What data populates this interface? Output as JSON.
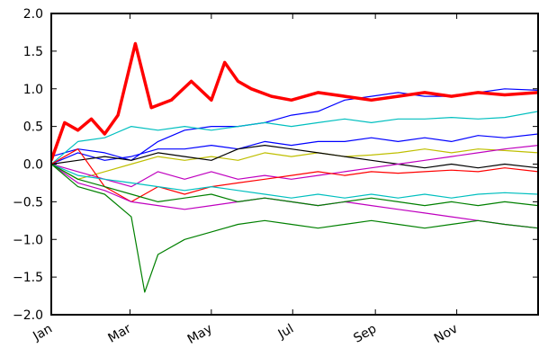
{
  "chart_data": {
    "type": "line",
    "title": "",
    "xlabel": "",
    "ylabel": "",
    "ylim": [
      -2.0,
      2.0
    ],
    "xlim_day": [
      0,
      365
    ],
    "grid": false,
    "legend": "none",
    "y_ticks": [
      {
        "value": 2.0,
        "label": "2.0"
      },
      {
        "value": 1.5,
        "label": "1.5"
      },
      {
        "value": 1.0,
        "label": "1.0"
      },
      {
        "value": 0.5,
        "label": "0.5"
      },
      {
        "value": 0.0,
        "label": "0.0"
      },
      {
        "value": -0.5,
        "label": "−0.5"
      },
      {
        "value": -1.0,
        "label": "−1.0"
      },
      {
        "value": -1.5,
        "label": "−1.5"
      },
      {
        "value": -2.0,
        "label": "−2.0"
      }
    ],
    "x_ticks": [
      {
        "day": 0,
        "label": "Jan"
      },
      {
        "day": 59,
        "label": "Mar"
      },
      {
        "day": 120,
        "label": "May"
      },
      {
        "day": 181,
        "label": "Jul"
      },
      {
        "day": 243,
        "label": "Sep"
      },
      {
        "day": 304,
        "label": "Nov"
      }
    ],
    "series": [
      {
        "color": "#ff0000",
        "bold": true,
        "points": [
          [
            0,
            0.05
          ],
          [
            10,
            0.55
          ],
          [
            20,
            0.45
          ],
          [
            30,
            0.6
          ],
          [
            40,
            0.4
          ],
          [
            50,
            0.65
          ],
          [
            63,
            1.6
          ],
          [
            75,
            0.75
          ],
          [
            90,
            0.85
          ],
          [
            105,
            1.1
          ],
          [
            120,
            0.85
          ],
          [
            130,
            1.35
          ],
          [
            140,
            1.1
          ],
          [
            150,
            1.0
          ],
          [
            165,
            0.9
          ],
          [
            180,
            0.85
          ],
          [
            200,
            0.95
          ],
          [
            220,
            0.9
          ],
          [
            240,
            0.85
          ],
          [
            260,
            0.9
          ],
          [
            280,
            0.95
          ],
          [
            300,
            0.9
          ],
          [
            320,
            0.95
          ],
          [
            340,
            0.92
          ],
          [
            365,
            0.95
          ]
        ]
      },
      {
        "color": "#0000ff",
        "bold": false,
        "points": [
          [
            0,
            0.1
          ],
          [
            20,
            0.2
          ],
          [
            40,
            0.15
          ],
          [
            60,
            0.05
          ],
          [
            80,
            0.3
          ],
          [
            100,
            0.45
          ],
          [
            120,
            0.5
          ],
          [
            140,
            0.5
          ],
          [
            160,
            0.55
          ],
          [
            180,
            0.65
          ],
          [
            200,
            0.7
          ],
          [
            220,
            0.85
          ],
          [
            240,
            0.9
          ],
          [
            260,
            0.95
          ],
          [
            280,
            0.9
          ],
          [
            300,
            0.9
          ],
          [
            320,
            0.95
          ],
          [
            340,
            1.0
          ],
          [
            365,
            0.98
          ]
        ]
      },
      {
        "color": "#00bfbf",
        "bold": false,
        "points": [
          [
            0,
            0.0
          ],
          [
            20,
            0.3
          ],
          [
            40,
            0.35
          ],
          [
            60,
            0.5
          ],
          [
            80,
            0.45
          ],
          [
            100,
            0.5
          ],
          [
            120,
            0.45
          ],
          [
            140,
            0.5
          ],
          [
            160,
            0.55
          ],
          [
            180,
            0.5
          ],
          [
            200,
            0.55
          ],
          [
            220,
            0.6
          ],
          [
            240,
            0.55
          ],
          [
            260,
            0.6
          ],
          [
            280,
            0.6
          ],
          [
            300,
            0.62
          ],
          [
            320,
            0.6
          ],
          [
            340,
            0.62
          ],
          [
            365,
            0.7
          ]
        ]
      },
      {
        "color": "#0000ff",
        "bold": false,
        "points": [
          [
            0,
            0.0
          ],
          [
            20,
            0.15
          ],
          [
            40,
            0.05
          ],
          [
            60,
            0.1
          ],
          [
            80,
            0.2
          ],
          [
            100,
            0.2
          ],
          [
            120,
            0.25
          ],
          [
            140,
            0.2
          ],
          [
            160,
            0.3
          ],
          [
            180,
            0.25
          ],
          [
            200,
            0.3
          ],
          [
            220,
            0.3
          ],
          [
            240,
            0.35
          ],
          [
            260,
            0.3
          ],
          [
            280,
            0.35
          ],
          [
            300,
            0.3
          ],
          [
            320,
            0.38
          ],
          [
            340,
            0.35
          ],
          [
            365,
            0.4
          ]
        ]
      },
      {
        "color": "#bfbf00",
        "bold": false,
        "points": [
          [
            0,
            0.0
          ],
          [
            20,
            -0.2
          ],
          [
            40,
            -0.1
          ],
          [
            60,
            0.0
          ],
          [
            80,
            0.1
          ],
          [
            100,
            0.05
          ],
          [
            120,
            0.1
          ],
          [
            140,
            0.05
          ],
          [
            160,
            0.15
          ],
          [
            180,
            0.1
          ],
          [
            200,
            0.15
          ],
          [
            220,
            0.1
          ],
          [
            240,
            0.12
          ],
          [
            260,
            0.15
          ],
          [
            280,
            0.2
          ],
          [
            300,
            0.15
          ],
          [
            320,
            0.2
          ],
          [
            340,
            0.18
          ],
          [
            365,
            0.15
          ]
        ]
      },
      {
        "color": "#000000",
        "bold": false,
        "points": [
          [
            0,
            0.0
          ],
          [
            20,
            0.05
          ],
          [
            40,
            0.1
          ],
          [
            60,
            0.05
          ],
          [
            80,
            0.15
          ],
          [
            100,
            0.1
          ],
          [
            120,
            0.05
          ],
          [
            140,
            0.2
          ],
          [
            160,
            0.25
          ],
          [
            180,
            0.2
          ],
          [
            200,
            0.15
          ],
          [
            220,
            0.1
          ],
          [
            240,
            0.05
          ],
          [
            260,
            0.0
          ],
          [
            280,
            -0.05
          ],
          [
            300,
            0.0
          ],
          [
            320,
            -0.05
          ],
          [
            340,
            0.0
          ],
          [
            365,
            -0.05
          ]
        ]
      },
      {
        "color": "#bf00bf",
        "bold": false,
        "points": [
          [
            0,
            0.0
          ],
          [
            20,
            -0.1
          ],
          [
            40,
            -0.2
          ],
          [
            60,
            -0.3
          ],
          [
            80,
            -0.1
          ],
          [
            100,
            -0.2
          ],
          [
            120,
            -0.1
          ],
          [
            140,
            -0.2
          ],
          [
            160,
            -0.15
          ],
          [
            180,
            -0.2
          ],
          [
            200,
            -0.15
          ],
          [
            220,
            -0.1
          ],
          [
            240,
            -0.05
          ],
          [
            260,
            0.0
          ],
          [
            280,
            0.05
          ],
          [
            300,
            0.1
          ],
          [
            320,
            0.15
          ],
          [
            340,
            0.2
          ],
          [
            365,
            0.25
          ]
        ]
      },
      {
        "color": "#ff0000",
        "bold": false,
        "points": [
          [
            0,
            0.0
          ],
          [
            20,
            0.2
          ],
          [
            40,
            -0.3
          ],
          [
            60,
            -0.5
          ],
          [
            80,
            -0.3
          ],
          [
            100,
            -0.4
          ],
          [
            120,
            -0.3
          ],
          [
            140,
            -0.25
          ],
          [
            160,
            -0.2
          ],
          [
            180,
            -0.15
          ],
          [
            200,
            -0.1
          ],
          [
            220,
            -0.15
          ],
          [
            240,
            -0.1
          ],
          [
            260,
            -0.12
          ],
          [
            280,
            -0.1
          ],
          [
            300,
            -0.08
          ],
          [
            320,
            -0.1
          ],
          [
            340,
            -0.05
          ],
          [
            365,
            -0.1
          ]
        ]
      },
      {
        "color": "#bf00bf",
        "bold": false,
        "points": [
          [
            0,
            0.0
          ],
          [
            20,
            -0.25
          ],
          [
            40,
            -0.35
          ],
          [
            60,
            -0.5
          ],
          [
            80,
            -0.55
          ],
          [
            100,
            -0.6
          ],
          [
            120,
            -0.55
          ],
          [
            140,
            -0.5
          ],
          [
            160,
            -0.45
          ],
          [
            180,
            -0.5
          ],
          [
            200,
            -0.55
          ],
          [
            220,
            -0.5
          ],
          [
            240,
            -0.55
          ],
          [
            260,
            -0.6
          ],
          [
            280,
            -0.65
          ],
          [
            300,
            -0.7
          ],
          [
            320,
            -0.75
          ],
          [
            340,
            -0.8
          ],
          [
            365,
            -0.85
          ]
        ]
      },
      {
        "color": "#00bfbf",
        "bold": false,
        "points": [
          [
            0,
            0.0
          ],
          [
            20,
            -0.15
          ],
          [
            40,
            -0.2
          ],
          [
            60,
            -0.25
          ],
          [
            80,
            -0.3
          ],
          [
            100,
            -0.35
          ],
          [
            120,
            -0.3
          ],
          [
            140,
            -0.35
          ],
          [
            160,
            -0.4
          ],
          [
            180,
            -0.45
          ],
          [
            200,
            -0.4
          ],
          [
            220,
            -0.45
          ],
          [
            240,
            -0.4
          ],
          [
            260,
            -0.45
          ],
          [
            280,
            -0.4
          ],
          [
            300,
            -0.45
          ],
          [
            320,
            -0.4
          ],
          [
            340,
            -0.38
          ],
          [
            365,
            -0.4
          ]
        ]
      },
      {
        "color": "#008000",
        "bold": false,
        "points": [
          [
            0,
            0.0
          ],
          [
            20,
            -0.3
          ],
          [
            40,
            -0.4
          ],
          [
            60,
            -0.7
          ],
          [
            70,
            -1.7
          ],
          [
            80,
            -1.2
          ],
          [
            100,
            -1.0
          ],
          [
            120,
            -0.9
          ],
          [
            140,
            -0.8
          ],
          [
            160,
            -0.75
          ],
          [
            180,
            -0.8
          ],
          [
            200,
            -0.85
          ],
          [
            220,
            -0.8
          ],
          [
            240,
            -0.75
          ],
          [
            260,
            -0.8
          ],
          [
            280,
            -0.85
          ],
          [
            300,
            -0.8
          ],
          [
            320,
            -0.75
          ],
          [
            340,
            -0.8
          ],
          [
            365,
            -0.85
          ]
        ]
      },
      {
        "color": "#008000",
        "bold": false,
        "points": [
          [
            0,
            0.0
          ],
          [
            20,
            -0.2
          ],
          [
            40,
            -0.3
          ],
          [
            60,
            -0.4
          ],
          [
            80,
            -0.5
          ],
          [
            100,
            -0.45
          ],
          [
            120,
            -0.4
          ],
          [
            140,
            -0.5
          ],
          [
            160,
            -0.45
          ],
          [
            180,
            -0.5
          ],
          [
            200,
            -0.55
          ],
          [
            220,
            -0.5
          ],
          [
            240,
            -0.45
          ],
          [
            260,
            -0.5
          ],
          [
            280,
            -0.55
          ],
          [
            300,
            -0.5
          ],
          [
            320,
            -0.55
          ],
          [
            340,
            -0.5
          ],
          [
            365,
            -0.55
          ]
        ]
      }
    ]
  }
}
